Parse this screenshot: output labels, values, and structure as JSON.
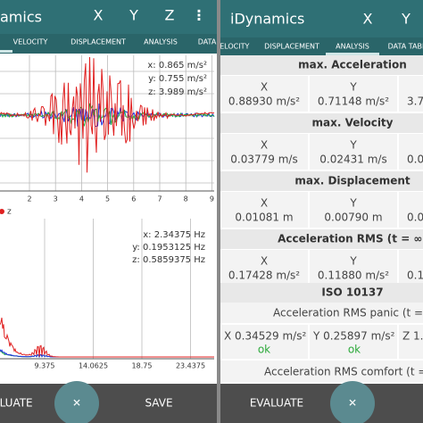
{
  "left": {
    "app_bar": {
      "title": "amics",
      "actions": [
        "X",
        "Y",
        "Z",
        "⋮"
      ]
    },
    "tabs": [
      "VELOCITY",
      "DISPLACEMENT",
      "ANALYSIS",
      "DATA"
    ],
    "chart1": {
      "readings": [
        "x: 0.865 m/s²",
        "y: 0.755 m/s²",
        "z: 3.989 m/s²"
      ],
      "x_labels": [
        "2",
        "3",
        "4",
        "5",
        "6",
        "7",
        "8",
        "9"
      ]
    },
    "legend": "z",
    "chart2": {
      "readings": [
        "x: 2.34375 Hz",
        "y: 0.1953125 Hz",
        "z: 0.5859375 Hz"
      ],
      "x_labels": [
        "9.375",
        "14.0625",
        "18.75",
        "23.4375"
      ]
    },
    "bottom_bar": {
      "left": "ALUATE",
      "center": "✕",
      "right": "SAVE"
    }
  },
  "right": {
    "app_bar": {
      "title": "iDynamics",
      "actions": [
        "X",
        "Y"
      ]
    },
    "tabs": [
      "VELOCITY",
      "DISPLACEMENT",
      "ANALYSIS",
      "DATA TABL"
    ],
    "sections": [
      {
        "title": "max. Acceleration",
        "cells": [
          {
            "axis": "X",
            "value": "0.88930 m/s²"
          },
          {
            "axis": "Y",
            "value": "0.71148 m/s²"
          },
          {
            "value": "3.7"
          }
        ]
      },
      {
        "title": "max. Velocity",
        "cells": [
          {
            "axis": "X",
            "value": "0.03779 m/s"
          },
          {
            "axis": "Y",
            "value": "0.02431 m/s"
          },
          {
            "value": "0.0"
          }
        ]
      },
      {
        "title": "max. Displacement",
        "cells": [
          {
            "axis": "X",
            "value": "0.01081 m"
          },
          {
            "axis": "Y",
            "value": "0.00790 m"
          },
          {
            "value": "0.0"
          }
        ]
      },
      {
        "title": "Acceleration RMS (t = ∞)",
        "cells": [
          {
            "axis": "X",
            "value": "0.17428 m/s²"
          },
          {
            "axis": "Y",
            "value": "0.11880 m/s²"
          },
          {
            "value": "0.1"
          }
        ]
      }
    ],
    "iso": {
      "title": "ISO 10137",
      "panic": "Acceleration RMS panic (t = 1",
      "cells": [
        {
          "value": "X 0.34529 m/s²",
          "status": "ok"
        },
        {
          "value": "Y 0.25897 m/s²",
          "status": "ok"
        },
        {
          "value": "Z 1."
        }
      ],
      "comfort": "Acceleration RMS comfort (t = 1"
    },
    "bottom_bar": {
      "left": "EVALUATE",
      "center": "✕"
    }
  }
}
